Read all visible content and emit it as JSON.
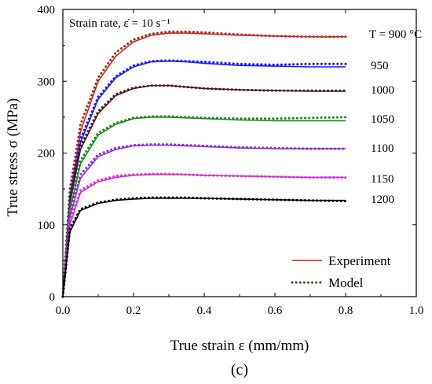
{
  "chart_data": {
    "type": "line",
    "xlabel": "True strain ε (mm/mm)",
    "ylabel": "True stress σ (MPa)",
    "xlim": [
      0.0,
      1.0
    ],
    "ylim": [
      0,
      400
    ],
    "x_ticks": [
      "0.0",
      "0.2",
      "0.4",
      "0.6",
      "0.8",
      "1.0"
    ],
    "y_ticks": [
      "0",
      "100",
      "200",
      "300",
      "400"
    ],
    "annotation": "Strain rate, ε̇ = 10 s⁻¹",
    "panel_label": "(c)",
    "legend": {
      "placement": "bottom-right",
      "entries": [
        {
          "label": "Experiment",
          "style": "solid",
          "color": "#cc2200"
        },
        {
          "label": "Model",
          "style": "dotted",
          "color": "#6b3a1a"
        }
      ]
    },
    "series": [
      {
        "label": "T = 900 °C",
        "color": "#d62020",
        "model_color": "#8a3a1a",
        "x": [
          0.0,
          0.02,
          0.05,
          0.1,
          0.15,
          0.2,
          0.25,
          0.3,
          0.35,
          0.4,
          0.5,
          0.6,
          0.7,
          0.8
        ],
        "y": [
          0,
          140,
          230,
          300,
          335,
          355,
          364,
          367,
          367,
          366,
          364,
          363,
          362,
          362
        ],
        "model_y": [
          0,
          150,
          240,
          305,
          340,
          358,
          366,
          369,
          369,
          368,
          365,
          363,
          362,
          362
        ]
      },
      {
        "label": "950",
        "color": "#1a1aff",
        "model_color": "#1a1aff",
        "x": [
          0.0,
          0.02,
          0.05,
          0.1,
          0.15,
          0.2,
          0.25,
          0.3,
          0.35,
          0.4,
          0.5,
          0.6,
          0.7,
          0.8
        ],
        "y": [
          0,
          135,
          215,
          275,
          305,
          320,
          327,
          328,
          327,
          325,
          322,
          321,
          320,
          320
        ],
        "model_y": [
          0,
          140,
          220,
          278,
          307,
          322,
          328,
          329,
          328,
          327,
          324,
          323,
          324,
          324
        ]
      },
      {
        "label": "1000",
        "color": "#4a1a1a",
        "model_color": "#4a1a1a",
        "x": [
          0.0,
          0.02,
          0.05,
          0.1,
          0.15,
          0.2,
          0.25,
          0.3,
          0.35,
          0.4,
          0.5,
          0.6,
          0.7,
          0.8
        ],
        "y": [
          0,
          130,
          205,
          255,
          280,
          290,
          294,
          294,
          292,
          290,
          288,
          287,
          286,
          286
        ],
        "model_y": [
          0,
          135,
          210,
          258,
          282,
          291,
          294,
          294,
          292,
          290,
          288,
          287,
          287,
          287
        ]
      },
      {
        "label": "1050",
        "color": "#1a8a1a",
        "model_color": "#1a8a1a",
        "x": [
          0.0,
          0.02,
          0.05,
          0.1,
          0.15,
          0.2,
          0.25,
          0.3,
          0.35,
          0.4,
          0.5,
          0.6,
          0.7,
          0.8
        ],
        "y": [
          0,
          120,
          185,
          225,
          240,
          248,
          250,
          250,
          249,
          248,
          246,
          245,
          245,
          245
        ],
        "model_y": [
          0,
          125,
          190,
          228,
          242,
          249,
          251,
          251,
          250,
          249,
          248,
          248,
          249,
          250
        ]
      },
      {
        "label": "1100",
        "color": "#8a2be2",
        "model_color": "#8a2be2",
        "x": [
          0.0,
          0.02,
          0.05,
          0.1,
          0.15,
          0.2,
          0.25,
          0.3,
          0.35,
          0.4,
          0.5,
          0.6,
          0.7,
          0.8
        ],
        "y": [
          0,
          110,
          165,
          195,
          205,
          210,
          211,
          211,
          210,
          209,
          207,
          206,
          206,
          206
        ],
        "model_y": [
          0,
          115,
          170,
          198,
          207,
          211,
          212,
          212,
          211,
          210,
          208,
          207,
          206,
          206
        ]
      },
      {
        "label": "1150",
        "color": "#cc33cc",
        "model_color": "#cc33cc",
        "x": [
          0.0,
          0.02,
          0.05,
          0.1,
          0.15,
          0.2,
          0.25,
          0.3,
          0.35,
          0.4,
          0.5,
          0.6,
          0.7,
          0.8
        ],
        "y": [
          0,
          100,
          145,
          160,
          166,
          169,
          170,
          170,
          170,
          169,
          168,
          167,
          166,
          166
        ],
        "model_y": [
          0,
          105,
          148,
          162,
          168,
          170,
          171,
          171,
          170,
          169,
          168,
          167,
          166,
          166
        ]
      },
      {
        "label": "1200",
        "color": "#000000",
        "model_color": "#000000",
        "x": [
          0.0,
          0.02,
          0.05,
          0.1,
          0.15,
          0.2,
          0.25,
          0.3,
          0.35,
          0.4,
          0.5,
          0.6,
          0.7,
          0.8
        ],
        "y": [
          0,
          90,
          120,
          130,
          134,
          136,
          137,
          137,
          137,
          137,
          136,
          135,
          134,
          134
        ],
        "model_y": [
          0,
          95,
          122,
          131,
          135,
          137,
          138,
          138,
          138,
          137,
          136,
          135,
          134,
          133
        ]
      }
    ]
  }
}
